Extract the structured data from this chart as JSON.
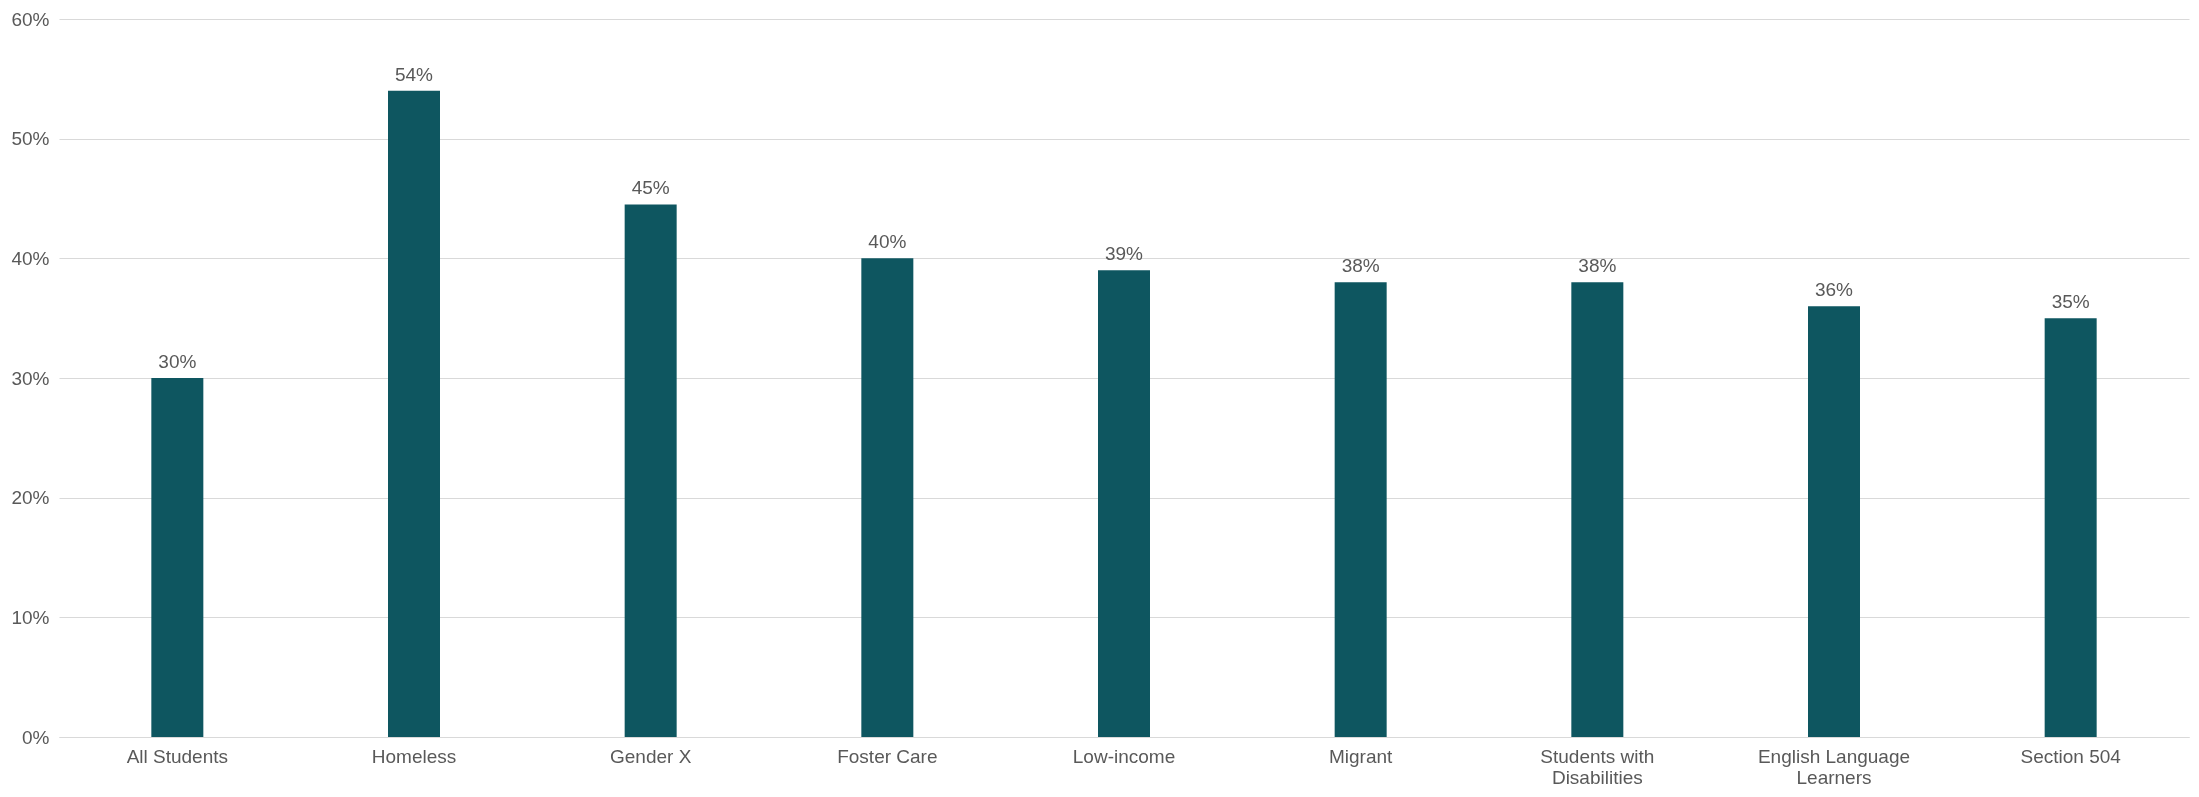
{
  "chart_data": {
    "type": "bar",
    "categories": [
      "All Students",
      "Homeless",
      "Gender X",
      "Foster Care",
      "Low-income",
      "Migrant",
      "Students with Disabilities",
      "English Language Learners",
      "Section 504"
    ],
    "values": [
      30,
      54,
      44.5,
      40,
      39,
      38,
      38,
      36,
      35
    ],
    "value_labels": [
      "30%",
      "54%",
      "45%",
      "40%",
      "39%",
      "38%",
      "38%",
      "36%",
      "35%"
    ],
    "color": "#0e5660",
    "ylim": [
      0,
      60
    ],
    "yticks": [
      {
        "value": 0,
        "label": "0%"
      },
      {
        "value": 10,
        "label": "10%"
      },
      {
        "value": 20,
        "label": "20%"
      },
      {
        "value": 30,
        "label": "30%"
      },
      {
        "value": 40,
        "label": "40%"
      },
      {
        "value": 50,
        "label": "50%"
      },
      {
        "value": 60,
        "label": "60%"
      }
    ],
    "grid": "y"
  }
}
